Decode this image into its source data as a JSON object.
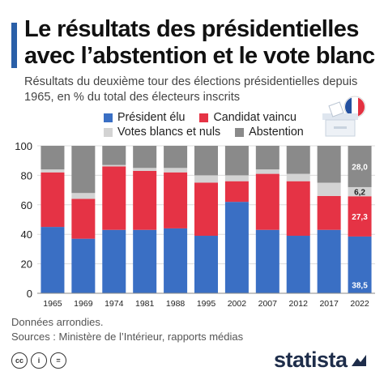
{
  "header": {
    "title": "Le résultats des présidentielles avec l’abstention et le vote blanc",
    "subtitle": "Résultats du deuxième tour des élections présidentielles depuis 1965, en % du total des électeurs inscrits"
  },
  "colors": {
    "accent": "#2a5fa8",
    "elu": "#3a6fc4",
    "vaincu": "#e53345",
    "blancs": "#d3d3d3",
    "abstention": "#8a8a8a"
  },
  "legend": {
    "elu": "Président élu",
    "vaincu": "Candidat vaincu",
    "blancs": "Votes blancs et nuls",
    "abstention": "Abstention"
  },
  "chart_data": {
    "type": "bar",
    "stacked": true,
    "categories": [
      "1965",
      "1969",
      "1974",
      "1981",
      "1988",
      "1995",
      "2002",
      "2007",
      "2012",
      "2017",
      "2022"
    ],
    "series": [
      {
        "name": "Président élu",
        "values": [
          45,
          37,
          43,
          43,
          44,
          39,
          62,
          43,
          39,
          43,
          38.5
        ]
      },
      {
        "name": "Candidat vaincu",
        "values": [
          37,
          27,
          43,
          40,
          38,
          36,
          14,
          38,
          37,
          23,
          27.3
        ]
      },
      {
        "name": "Votes blancs et nuls",
        "values": [
          2,
          4,
          1,
          2,
          3,
          5,
          4,
          3,
          5,
          9,
          6.2
        ]
      },
      {
        "name": "Abstention",
        "values": [
          16,
          32,
          13,
          15,
          15,
          20,
          20,
          16,
          19,
          25,
          28.0
        ]
      }
    ],
    "ylim": [
      0,
      100
    ],
    "yticks": [
      0,
      20,
      40,
      60,
      80,
      100
    ],
    "grid": true,
    "data_labels": [
      {
        "category": "2022",
        "series": "Abstention",
        "text": "28,0"
      },
      {
        "category": "2022",
        "series": "Votes blancs et nuls",
        "text": "6,2"
      },
      {
        "category": "2022",
        "series": "Candidat vaincu",
        "text": "27,3"
      },
      {
        "category": "2022",
        "series": "Président élu",
        "text": "38,5"
      }
    ]
  },
  "footer": {
    "note": "Données arrondies.",
    "sources": "Sources : Ministère de l’Intérieur, rapports médias",
    "cc_icons": [
      "cc",
      "i",
      "="
    ],
    "brand": "statista"
  }
}
